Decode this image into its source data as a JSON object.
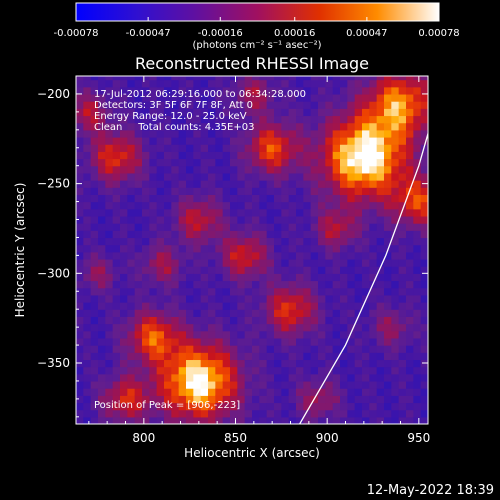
{
  "chart_data": {
    "type": "heatmap",
    "title": "Reconstructed RHESSI Image",
    "xlabel": "Heliocentric X (arcsec)",
    "ylabel": "Heliocentric Y (arcsec)",
    "xlim": [
      763,
      955
    ],
    "ylim": [
      -384,
      -190
    ],
    "x_ticks": [
      "800",
      "850",
      "900",
      "950"
    ],
    "y_ticks": [
      "-200",
      "-250",
      "-300",
      "-350"
    ],
    "colorbar": {
      "ticks": [
        "-0.00078",
        "-0.00047",
        "-0.00016",
        "0.00016",
        "0.00047",
        "0.00078"
      ],
      "unit_label": "(photons cm⁻² s⁻¹ asec⁻²)",
      "range": [
        -0.00078,
        0.00078
      ]
    },
    "annotations": [
      "17-Jul-2012 06:29:16.000 to 06:34:28.000",
      "Detectors: 3F 5F 6F 7F 8F, Att 0",
      "Energy Range: 12.0 - 25.0 keV",
      "Clean     Total counts: 4.35E+03"
    ],
    "peak_label": "Position of Peak = [906,-223]",
    "peak": {
      "x": 906,
      "y": -223
    },
    "limb_points": [
      [
        964,
        -190
      ],
      [
        950,
        -240
      ],
      [
        932,
        -290
      ],
      [
        910,
        -340
      ],
      [
        885,
        -384
      ]
    ],
    "sources": [
      {
        "x": 920,
        "y": -235,
        "amp": 1.0,
        "sigma": 16
      },
      {
        "x": 940,
        "y": -205,
        "amp": 0.7,
        "sigma": 13
      },
      {
        "x": 950,
        "y": -260,
        "amp": 0.55,
        "sigma": 10
      },
      {
        "x": 830,
        "y": -360,
        "amp": 0.95,
        "sigma": 15
      },
      {
        "x": 805,
        "y": -335,
        "amp": 0.6,
        "sigma": 10
      },
      {
        "x": 790,
        "y": -370,
        "amp": 0.5,
        "sigma": 9
      },
      {
        "x": 785,
        "y": -235,
        "amp": 0.55,
        "sigma": 10
      },
      {
        "x": 770,
        "y": -210,
        "amp": 0.4,
        "sigma": 8
      },
      {
        "x": 870,
        "y": -230,
        "amp": 0.6,
        "sigma": 10
      },
      {
        "x": 830,
        "y": -270,
        "amp": 0.45,
        "sigma": 9
      },
      {
        "x": 855,
        "y": -290,
        "amp": 0.5,
        "sigma": 9
      },
      {
        "x": 880,
        "y": -320,
        "amp": 0.55,
        "sigma": 10
      },
      {
        "x": 810,
        "y": -295,
        "amp": 0.35,
        "sigma": 8
      },
      {
        "x": 905,
        "y": -275,
        "amp": 0.4,
        "sigma": 8
      },
      {
        "x": 860,
        "y": -200,
        "amp": 0.35,
        "sigma": 8
      },
      {
        "x": 895,
        "y": -370,
        "amp": 0.35,
        "sigma": 8
      },
      {
        "x": 935,
        "y": -330,
        "amp": 0.3,
        "sigma": 8
      },
      {
        "x": 775,
        "y": -300,
        "amp": 0.3,
        "sigma": 7
      }
    ]
  },
  "footer": {
    "timestamp": "12-May-2022 18:39"
  }
}
